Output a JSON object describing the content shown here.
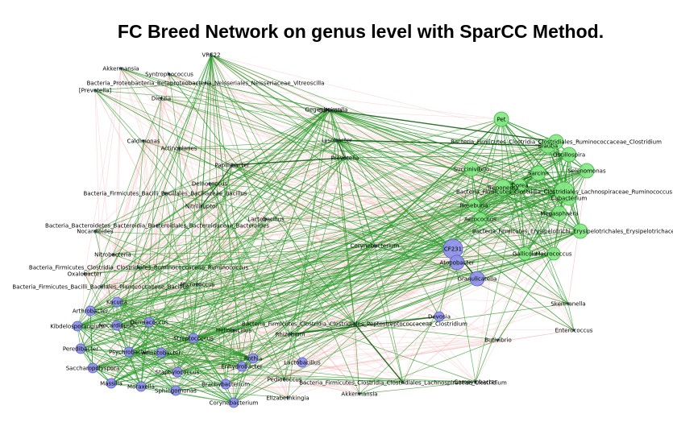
{
  "title": "FC Breed Network on genus level with SparCC Method.",
  "colors": {
    "positive_edge": "#2f9e2f",
    "strong_edge": "#156015",
    "negative_edge": "#f6b8b8",
    "node_green": "#86e886",
    "node_green_stroke": "#3db23d",
    "node_blue": "#8f91ea",
    "node_blue_stroke": "#5a5cc8",
    "node_dark": "#2f5a7a"
  },
  "nodes": [
    {
      "id": "vrc22",
      "label": "VRC22",
      "group": "none"
    },
    {
      "id": "akkermansia",
      "label": "Akkermansia",
      "group": "none"
    },
    {
      "id": "syntrophococcus",
      "label": "Syntrophococcus",
      "group": "none"
    },
    {
      "id": "vitreoscilla",
      "label": "Bacteria_Proteobacteria_Betaproteobacteria_Neisseriales_Neisseriaceae_Vitreoscilla",
      "group": "none"
    },
    {
      "id": "prevotella_br",
      "label": "[Prevotella]",
      "group": "none"
    },
    {
      "id": "dietzia",
      "label": "Dietzia",
      "group": "none"
    },
    {
      "id": "gallicola_top",
      "label": "Gallicola",
      "group": "none"
    },
    {
      "id": "caldimonas",
      "label": "Caldimonas",
      "group": "none"
    },
    {
      "id": "actinoplanes",
      "label": "Actinoplanes",
      "group": "none"
    },
    {
      "id": "papillibacter",
      "label": "Papillibacter",
      "group": "none"
    },
    {
      "id": "deinococcus",
      "label": "Deinococcus",
      "group": "none"
    },
    {
      "id": "bacillus",
      "label": "Bacteria_Firmicutes_Bacilli_Bacillales_Bacillaceae_Bacillus",
      "group": "none"
    },
    {
      "id": "nitriliruptor",
      "label": "Nitriliruptor",
      "group": "none"
    },
    {
      "id": "lactobacillus_mid",
      "label": "Lactobacillus",
      "group": "none"
    },
    {
      "id": "bacteroides",
      "label": "Bacteria_Bacteroidetes_Bacteroidia_Bacteroidales_Bacteroidaceae_Bacteroides",
      "group": "none"
    },
    {
      "id": "nocardioides",
      "label": "Nocardioides",
      "group": "none"
    },
    {
      "id": "nitrobacteria",
      "label": "Nitrobacteria",
      "group": "none"
    },
    {
      "id": "ruminococcus_l",
      "label": "Bacteria_Firmicutes_Clostridia_Clostridiales_Ruminococcaceae_Ruminococcus",
      "group": "none"
    },
    {
      "id": "oxalobacter",
      "label": "Oxalobacter",
      "group": "none"
    },
    {
      "id": "planococcus",
      "label": "Bacteria_Firmicutes_Bacilli_Bacillales_Planococcaceae_Bacillus",
      "group": "none"
    },
    {
      "id": "micrococcus",
      "label": "Micrococcus",
      "group": "none"
    },
    {
      "id": "ggb",
      "label": "Gegenheimella",
      "group": "none"
    },
    {
      "id": "lysobacter",
      "label": "Lysobacter",
      "group": "none"
    },
    {
      "id": "prevotella",
      "label": "Prevotella",
      "group": "none"
    },
    {
      "id": "corynebacterium",
      "label": "Corynebacterium",
      "group": "none"
    },
    {
      "id": "cf231",
      "label": "CF231",
      "group": "blue"
    },
    {
      "id": "atopobacter",
      "label": "Atopobacter",
      "group": "blue"
    },
    {
      "id": "granulicatella",
      "label": "Granulicatella",
      "group": "blue"
    },
    {
      "id": "pet",
      "label": "Pet",
      "group": "green"
    },
    {
      "id": "treponema",
      "label": "Treponema",
      "group": "green"
    },
    {
      "id": "selenomonas",
      "label": "Selenomonas",
      "group": "green"
    },
    {
      "id": "eubacterium",
      "label": "Eubacterium",
      "group": "green"
    },
    {
      "id": "succinivibrio",
      "label": "Succinivibrio",
      "group": "green"
    },
    {
      "id": "roseburia",
      "label": "Roseburia",
      "group": "green"
    },
    {
      "id": "megasphaera",
      "label": "Megasphaera",
      "group": "green"
    },
    {
      "id": "aerococcus",
      "label": "Aerococcus",
      "group": "green"
    },
    {
      "id": "gallicola",
      "label": "Gallicola",
      "group": "green"
    },
    {
      "id": "macrococcus",
      "label": "Macrococcus",
      "group": "green"
    },
    {
      "id": "blautia",
      "label": "Blautia",
      "group": "green"
    },
    {
      "id": "oscillospira",
      "label": "Oscillospira",
      "group": "green"
    },
    {
      "id": "sarcina",
      "label": "Sarcina",
      "group": "green"
    },
    {
      "id": "dorea",
      "label": "Dorea",
      "group": "green"
    },
    {
      "id": "ruminococcus_r",
      "label": "Bacteria_Firmicutes_Clostridia_Clostridiales_Lachnospiraceae_Ruminococcus",
      "group": "green"
    },
    {
      "id": "clostridium_r",
      "label": "Bacteria_Firmicutes_Clostridia_Clostridiales_Ruminococcaceae_Clostridium",
      "group": "green"
    },
    {
      "id": "erysipelo",
      "label": "Bacteria_Firmicutes_Erysipelotrichi_Erysipelotrichales_Erysipelotrichaceae_C",
      "group": "green"
    },
    {
      "id": "skermanella",
      "label": "Skermanella",
      "group": "none"
    },
    {
      "id": "enterococcus",
      "label": "Enterococcus",
      "group": "none"
    },
    {
      "id": "peptostrepto",
      "label": "Bacteria_Firmicutes_Clostridia_Clostridiales_Peptostreptococcaceae_Clostridium",
      "group": "none"
    },
    {
      "id": "butivibrio",
      "label": "Butivibrio",
      "group": "none"
    },
    {
      "id": "campylobacter",
      "label": "Campylobacter",
      "group": "none"
    },
    {
      "id": "lachno_bot",
      "label": "Bacteria_Firmicutes_Clostridia_Clostridiales_Lachnospiraceae_Clostridium",
      "group": "none"
    },
    {
      "id": "akkermansia_bot",
      "label": "Akkermansia",
      "group": "none"
    },
    {
      "id": "elizabethkingia",
      "label": "Elizabethkingia",
      "group": "none"
    },
    {
      "id": "pediococcus",
      "label": "Pediococcus",
      "group": "none"
    },
    {
      "id": "rhizobium",
      "label": "Rhizobium",
      "group": "none"
    },
    {
      "id": "heliobacillus",
      "label": "Heliobacillus",
      "group": "none"
    },
    {
      "id": "enhydrobacter",
      "label": "Enhydrobacter",
      "group": "blue"
    },
    {
      "id": "rothia",
      "label": "Rothia",
      "group": "blue"
    },
    {
      "id": "lactobacillus_b",
      "label": "Lactobacillus",
      "group": "blue"
    },
    {
      "id": "kocuria",
      "label": "Kocuria",
      "group": "blue"
    },
    {
      "id": "arthrobacter",
      "label": "Arthrobacter",
      "group": "blue"
    },
    {
      "id": "kibdelo",
      "label": "Kibdelosporangium",
      "group": "blue"
    },
    {
      "id": "peredibacter",
      "label": "Peredibacter",
      "group": "blue"
    },
    {
      "id": "saccharo",
      "label": "Saccharopolyspora",
      "group": "blue"
    },
    {
      "id": "massilia",
      "label": "Massilia",
      "group": "blue"
    },
    {
      "id": "moraxella",
      "label": "Moraxella",
      "group": "blue"
    },
    {
      "id": "sphingomonas",
      "label": "Sphingomonas",
      "group": "blue"
    },
    {
      "id": "nocardiopsis",
      "label": "Nocardiopsis",
      "group": "blue"
    },
    {
      "id": "dermacoccus",
      "label": "Dermacoccus",
      "group": "blue"
    },
    {
      "id": "streptococcus",
      "label": "Streptococcus",
      "group": "blue"
    },
    {
      "id": "acinetobacter",
      "label": "Acinetobacter",
      "group": "blue"
    },
    {
      "id": "psychrobacter",
      "label": "Psychrobacter",
      "group": "blue"
    },
    {
      "id": "staphylococcus",
      "label": "Staphylococcus",
      "group": "blue"
    },
    {
      "id": "brachybacterium",
      "label": "Brachybacterium",
      "group": "blue"
    },
    {
      "id": "corynebacterium_b",
      "label": "Corynebacterium",
      "group": "blue"
    },
    {
      "id": "devosia",
      "label": "Devosia",
      "group": "blue"
    }
  ]
}
